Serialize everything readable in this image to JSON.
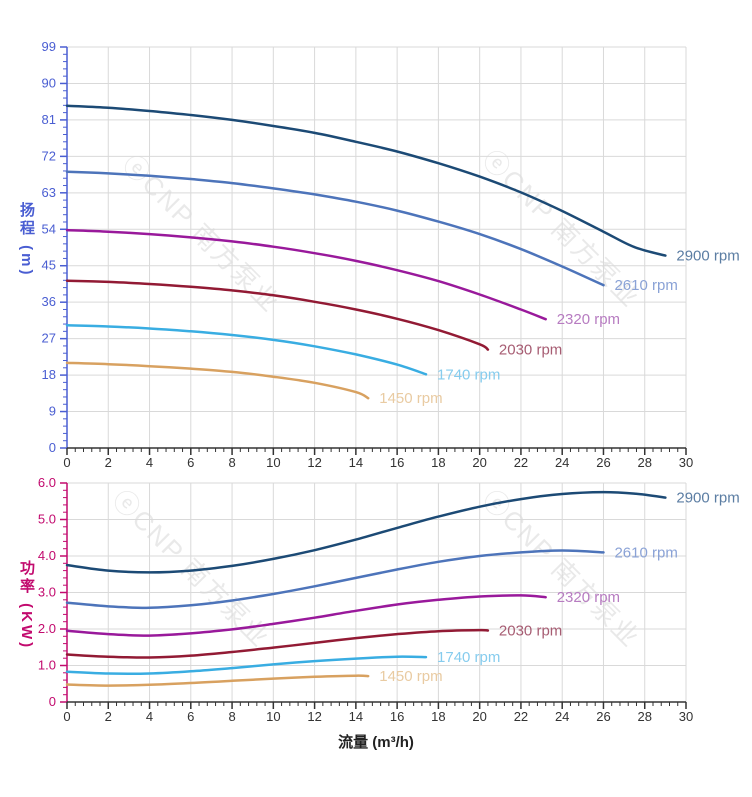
{
  "watermark": {
    "text": "ⓔCNP 南方泵业",
    "color": "#d8d8d8"
  },
  "grid_color": "#d9d9d9",
  "x_axis_color": "#333333",
  "chart_data": [
    {
      "type": "line",
      "title": "",
      "xlabel": "流量 (m³/h)",
      "ylabel": "扬程 (m)",
      "axis_color": "#4a5ed2",
      "grid": true,
      "legend_position": "curve-ends",
      "xlim": [
        0,
        30
      ],
      "ylim": [
        0,
        99
      ],
      "xtick_step": 2,
      "ytick_step": 9,
      "x_minor_step": 0.4,
      "y_minor_step": 1.8,
      "xtick_labels": [
        "0",
        "2",
        "4",
        "6",
        "8",
        "10",
        "12",
        "14",
        "16",
        "18",
        "20",
        "22",
        "24",
        "26",
        "28",
        "30"
      ],
      "ytick_labels": [
        "0",
        "9",
        "18",
        "27",
        "36",
        "45",
        "54",
        "63",
        "72",
        "81",
        "90",
        "99"
      ],
      "series": [
        {
          "name": "2900 rpm",
          "color": "#1c4a75",
          "label_color": "#5b7da3",
          "points": [
            [
              0,
              84.5
            ],
            [
              2,
              84
            ],
            [
              4,
              83.2
            ],
            [
              6,
              82.2
            ],
            [
              8,
              81
            ],
            [
              10,
              79.5
            ],
            [
              12,
              77.8
            ],
            [
              14,
              75.6
            ],
            [
              16,
              73.2
            ],
            [
              18,
              70.3
            ],
            [
              20,
              67
            ],
            [
              22,
              63.1
            ],
            [
              24,
              58.5
            ],
            [
              26,
              53.4
            ],
            [
              27.5,
              49.6
            ],
            [
              29,
              47.5
            ]
          ]
        },
        {
          "name": "2610 rpm",
          "color": "#4d74ba",
          "label_color": "#8aa2d6",
          "points": [
            [
              0,
              68.2
            ],
            [
              2,
              67.8
            ],
            [
              4,
              67.2
            ],
            [
              6,
              66.4
            ],
            [
              8,
              65.4
            ],
            [
              10,
              64.1
            ],
            [
              12,
              62.6
            ],
            [
              14,
              60.8
            ],
            [
              16,
              58.6
            ],
            [
              18,
              55.9
            ],
            [
              20,
              52.8
            ],
            [
              22,
              49.1
            ],
            [
              24,
              44.8
            ],
            [
              26,
              40.2
            ]
          ]
        },
        {
          "name": "2320 rpm",
          "color": "#99199b",
          "label_color": "#b77cc1",
          "points": [
            [
              0,
              53.8
            ],
            [
              2,
              53.4
            ],
            [
              4,
              52.8
            ],
            [
              6,
              52
            ],
            [
              8,
              51
            ],
            [
              10,
              49.7
            ],
            [
              12,
              48.1
            ],
            [
              14,
              46.2
            ],
            [
              16,
              43.9
            ],
            [
              18,
              41.2
            ],
            [
              20,
              37.9
            ],
            [
              22,
              34.2
            ],
            [
              23.2,
              31.8
            ]
          ]
        },
        {
          "name": "2030 rpm",
          "color": "#921a34",
          "label_color": "#a75d73",
          "points": [
            [
              0,
              41.3
            ],
            [
              2,
              41
            ],
            [
              4,
              40.5
            ],
            [
              6,
              39.8
            ],
            [
              8,
              38.9
            ],
            [
              10,
              37.7
            ],
            [
              12,
              36.1
            ],
            [
              14,
              34.2
            ],
            [
              16,
              31.9
            ],
            [
              18,
              29.1
            ],
            [
              20,
              25.6
            ],
            [
              20.4,
              24.3
            ]
          ]
        },
        {
          "name": "1740 rpm",
          "color": "#39ade2",
          "label_color": "#86ccee",
          "points": [
            [
              0,
              30.3
            ],
            [
              2,
              30
            ],
            [
              4,
              29.5
            ],
            [
              6,
              28.8
            ],
            [
              8,
              27.9
            ],
            [
              10,
              26.7
            ],
            [
              12,
              25.1
            ],
            [
              14,
              23.1
            ],
            [
              16,
              20.6
            ],
            [
              17.4,
              18.2
            ]
          ]
        },
        {
          "name": "1450 rpm",
          "color": "#d8a160",
          "label_color": "#e9cba2",
          "points": [
            [
              0,
              21
            ],
            [
              2,
              20.7
            ],
            [
              4,
              20.2
            ],
            [
              6,
              19.6
            ],
            [
              8,
              18.8
            ],
            [
              10,
              17.6
            ],
            [
              12,
              16.1
            ],
            [
              14,
              13.8
            ],
            [
              14.6,
              12.3
            ]
          ]
        }
      ]
    },
    {
      "type": "line",
      "title": "",
      "xlabel": "流量 (m³/h)",
      "ylabel": "功率 (KW)",
      "axis_color": "#c20a6e",
      "grid": true,
      "legend_position": "curve-ends",
      "xlim": [
        0,
        30
      ],
      "ylim": [
        0,
        6
      ],
      "xtick_step": 2,
      "ytick_step": 1,
      "x_minor_step": 0.4,
      "y_minor_step": 0.2,
      "xtick_labels": [
        "0",
        "2",
        "4",
        "6",
        "8",
        "10",
        "12",
        "14",
        "16",
        "18",
        "20",
        "22",
        "24",
        "26",
        "28",
        "30"
      ],
      "ytick_labels": [
        "0",
        "1.0",
        "2.0",
        "3.0",
        "4.0",
        "5.0",
        "6.0"
      ],
      "series": [
        {
          "name": "2900 rpm",
          "color": "#1c4a75",
          "label_color": "#5b7da3",
          "points": [
            [
              0,
              3.75
            ],
            [
              2,
              3.6
            ],
            [
              4,
              3.55
            ],
            [
              6,
              3.6
            ],
            [
              8,
              3.73
            ],
            [
              10,
              3.92
            ],
            [
              12,
              4.16
            ],
            [
              14,
              4.45
            ],
            [
              16,
              4.77
            ],
            [
              18,
              5.08
            ],
            [
              20,
              5.35
            ],
            [
              22,
              5.56
            ],
            [
              24,
              5.7
            ],
            [
              26,
              5.75
            ],
            [
              27.5,
              5.71
            ],
            [
              29,
              5.6
            ]
          ]
        },
        {
          "name": "2610 rpm",
          "color": "#4d74ba",
          "label_color": "#8aa2d6",
          "points": [
            [
              0,
              2.72
            ],
            [
              2,
              2.62
            ],
            [
              4,
              2.58
            ],
            [
              6,
              2.65
            ],
            [
              8,
              2.78
            ],
            [
              10,
              2.96
            ],
            [
              12,
              3.17
            ],
            [
              14,
              3.4
            ],
            [
              16,
              3.63
            ],
            [
              18,
              3.84
            ],
            [
              20,
              4.0
            ],
            [
              22,
              4.1
            ],
            [
              24,
              4.15
            ],
            [
              26,
              4.1
            ]
          ]
        },
        {
          "name": "2320 rpm",
          "color": "#99199b",
          "label_color": "#b77cc1",
          "points": [
            [
              0,
              1.95
            ],
            [
              2,
              1.86
            ],
            [
              4,
              1.82
            ],
            [
              6,
              1.88
            ],
            [
              8,
              1.99
            ],
            [
              10,
              2.14
            ],
            [
              12,
              2.31
            ],
            [
              14,
              2.5
            ],
            [
              16,
              2.67
            ],
            [
              18,
              2.8
            ],
            [
              20,
              2.89
            ],
            [
              22,
              2.92
            ],
            [
              23.2,
              2.87
            ]
          ]
        },
        {
          "name": "2030 rpm",
          "color": "#921a34",
          "label_color": "#a75d73",
          "points": [
            [
              0,
              1.3
            ],
            [
              2,
              1.24
            ],
            [
              4,
              1.22
            ],
            [
              6,
              1.27
            ],
            [
              8,
              1.37
            ],
            [
              10,
              1.49
            ],
            [
              12,
              1.62
            ],
            [
              14,
              1.75
            ],
            [
              16,
              1.86
            ],
            [
              18,
              1.94
            ],
            [
              20,
              1.97
            ],
            [
              20.4,
              1.96
            ]
          ]
        },
        {
          "name": "1740 rpm",
          "color": "#39ade2",
          "label_color": "#86ccee",
          "points": [
            [
              0,
              0.83
            ],
            [
              2,
              0.78
            ],
            [
              4,
              0.78
            ],
            [
              6,
              0.84
            ],
            [
              8,
              0.93
            ],
            [
              10,
              1.03
            ],
            [
              12,
              1.12
            ],
            [
              14,
              1.19
            ],
            [
              16,
              1.24
            ],
            [
              17.4,
              1.23
            ]
          ]
        },
        {
          "name": "1450 rpm",
          "color": "#d8a160",
          "label_color": "#e9cba2",
          "points": [
            [
              0,
              0.48
            ],
            [
              2,
              0.45
            ],
            [
              4,
              0.47
            ],
            [
              6,
              0.52
            ],
            [
              8,
              0.58
            ],
            [
              10,
              0.64
            ],
            [
              12,
              0.69
            ],
            [
              14,
              0.72
            ],
            [
              14.6,
              0.71
            ]
          ]
        }
      ]
    }
  ]
}
